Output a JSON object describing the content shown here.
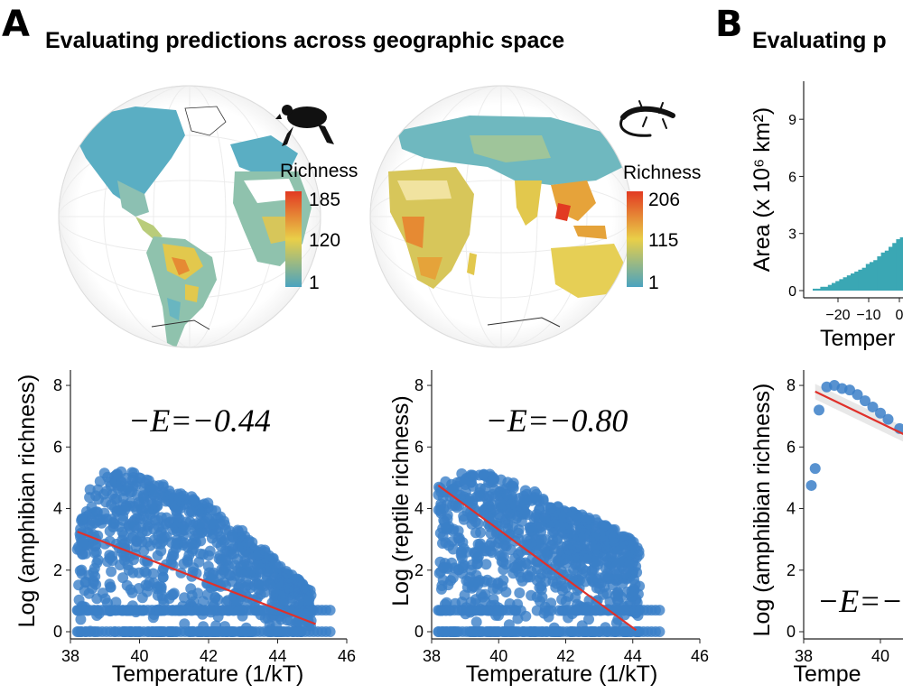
{
  "panel_a": {
    "letter": "A",
    "title": "Evaluating predictions across geographic space"
  },
  "panel_b": {
    "letter": "B",
    "title": "Evaluating p"
  },
  "maps": [
    {
      "legend_title": "Richness",
      "legend_max": "185",
      "legend_mid": "120",
      "legend_min": "1",
      "icon": "frog-icon"
    },
    {
      "legend_title": "Richness",
      "legend_max": "206",
      "legend_mid": "115",
      "legend_min": "1",
      "icon": "lizard-icon"
    }
  ],
  "colors": {
    "points": "#3b7fc8",
    "fit_line": "#e0302a",
    "scale_low": "#4aa3bf",
    "scale_mid": "#e9cf48",
    "scale_high": "#e23a22"
  },
  "chart_data": [
    {
      "type": "scatter",
      "panel": "A-amphibian",
      "xlabel": "Temperature (1/kT)",
      "ylabel": "Log (amphibian richness)",
      "annotation": "−E=−0.44",
      "xlim": [
        38,
        46
      ],
      "ylim": [
        0,
        8.5
      ],
      "xticks": [
        38,
        40,
        42,
        44,
        46
      ],
      "yticks": [
        0,
        2,
        4,
        6,
        8
      ],
      "envelope": [
        [
          38.2,
          3.2
        ],
        [
          38.5,
          4.6
        ],
        [
          39,
          5.2
        ],
        [
          40,
          5.2
        ],
        [
          41,
          4.6
        ],
        [
          42,
          4.2
        ],
        [
          43,
          3.3
        ],
        [
          44,
          2.3
        ],
        [
          45,
          1.3
        ]
      ],
      "fit": {
        "x": [
          38.2,
          45.1
        ],
        "y": [
          3.25,
          0.25
        ]
      }
    },
    {
      "type": "scatter",
      "panel": "A-reptile",
      "xlabel": "Temperature (1/kT)",
      "ylabel": "Log (reptile richness)",
      "annotation": "−E=−0.80",
      "xlim": [
        38,
        46
      ],
      "ylim": [
        0,
        8.5
      ],
      "xticks": [
        38,
        40,
        42,
        44,
        46
      ],
      "yticks": [
        0,
        2,
        4,
        6,
        8
      ],
      "envelope": [
        [
          38.2,
          4.9
        ],
        [
          39,
          5.2
        ],
        [
          40,
          5.1
        ],
        [
          41,
          4.6
        ],
        [
          42,
          4.0
        ],
        [
          43,
          3.6
        ],
        [
          44,
          3.0
        ],
        [
          44.2,
          2.7
        ]
      ],
      "fit": {
        "x": [
          38.2,
          44.1
        ],
        "y": [
          4.75,
          0.05
        ]
      }
    },
    {
      "type": "bar",
      "panel": "B-histogram",
      "xlabel": "Temper",
      "ylabel": "Area (x 10⁶ km²)",
      "ylim": [
        0,
        11
      ],
      "xticks": [
        "−20",
        "−10",
        "0"
      ],
      "yticks": [
        0,
        3,
        6,
        9
      ],
      "values_approx": [
        0.1,
        0.1,
        0.2,
        0.2,
        0.3,
        0.4,
        0.5,
        0.6,
        0.7,
        0.8,
        0.9,
        1.0,
        1.1,
        1.2,
        1.4,
        1.5,
        1.6,
        1.8,
        2.0,
        2.1,
        2.3,
        2.5,
        2.7,
        2.8,
        3.0
      ]
    },
    {
      "type": "scatter",
      "panel": "B-amphibian",
      "xlabel": "Tempe",
      "ylabel": "Log (amphibian richness)",
      "annotation": "−E=−",
      "xlim": [
        38,
        42
      ],
      "ylim": [
        0,
        8.5
      ],
      "xticks": [
        38,
        40
      ],
      "yticks": [
        0,
        2,
        4,
        6,
        8
      ],
      "points": [
        [
          38.2,
          4.75
        ],
        [
          38.3,
          5.3
        ],
        [
          38.4,
          7.2
        ],
        [
          38.6,
          7.95
        ],
        [
          38.8,
          8.0
        ],
        [
          39.0,
          7.9
        ],
        [
          39.2,
          7.85
        ],
        [
          39.4,
          7.7
        ],
        [
          39.6,
          7.5
        ],
        [
          39.8,
          7.3
        ],
        [
          40.0,
          7.1
        ],
        [
          40.2,
          6.9
        ],
        [
          40.5,
          6.6
        ],
        [
          40.8,
          6.3
        ],
        [
          41.1,
          6.1
        ]
      ],
      "fit": {
        "x": [
          38.3,
          41.3
        ],
        "y": [
          7.8,
          6.0
        ]
      }
    }
  ]
}
